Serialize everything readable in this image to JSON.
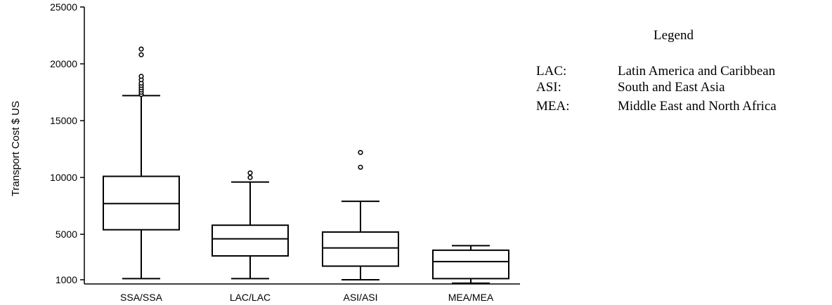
{
  "chart_data": {
    "type": "boxplot",
    "ylabel": "Transport Cost $ US",
    "yticks": [
      1000,
      5000,
      10000,
      15000,
      20000,
      25000
    ],
    "ylim": [
      500,
      25000
    ],
    "grid": false,
    "categories": [
      "SSA/SSA",
      "LAC/LAC",
      "ASI/ASI",
      "MEA/MEA"
    ],
    "boxes": [
      {
        "category": "SSA/SSA",
        "whisker_low": 1100,
        "q1": 5400,
        "median": 7700,
        "q3": 10100,
        "whisker_high": 17200,
        "outliers": [
          17300,
          17500,
          17700,
          17900,
          18100,
          18300,
          18600,
          18900,
          20800,
          21300
        ]
      },
      {
        "category": "LAC/LAC",
        "whisker_low": 1100,
        "q1": 3100,
        "median": 4600,
        "q3": 5800,
        "whisker_high": 9600,
        "outliers": [
          10000,
          10400
        ]
      },
      {
        "category": "ASI/ASI",
        "whisker_low": 1000,
        "q1": 2200,
        "median": 3800,
        "q3": 5200,
        "whisker_high": 7900,
        "outliers": [
          10900,
          12200
        ]
      },
      {
        "category": "MEA/MEA",
        "whisker_low": 700,
        "q1": 1100,
        "median": 2600,
        "q3": 3600,
        "whisker_high": 4000,
        "outliers": []
      }
    ],
    "legend_position": "right"
  },
  "legend": {
    "title": "Legend",
    "items": [
      {
        "code": "LAC:",
        "description": "Latin America and Caribbean"
      },
      {
        "code": "ASI:",
        "description": "South and East Asia"
      },
      {
        "code": "MEA:",
        "description": "Middle East and North Africa"
      }
    ]
  }
}
